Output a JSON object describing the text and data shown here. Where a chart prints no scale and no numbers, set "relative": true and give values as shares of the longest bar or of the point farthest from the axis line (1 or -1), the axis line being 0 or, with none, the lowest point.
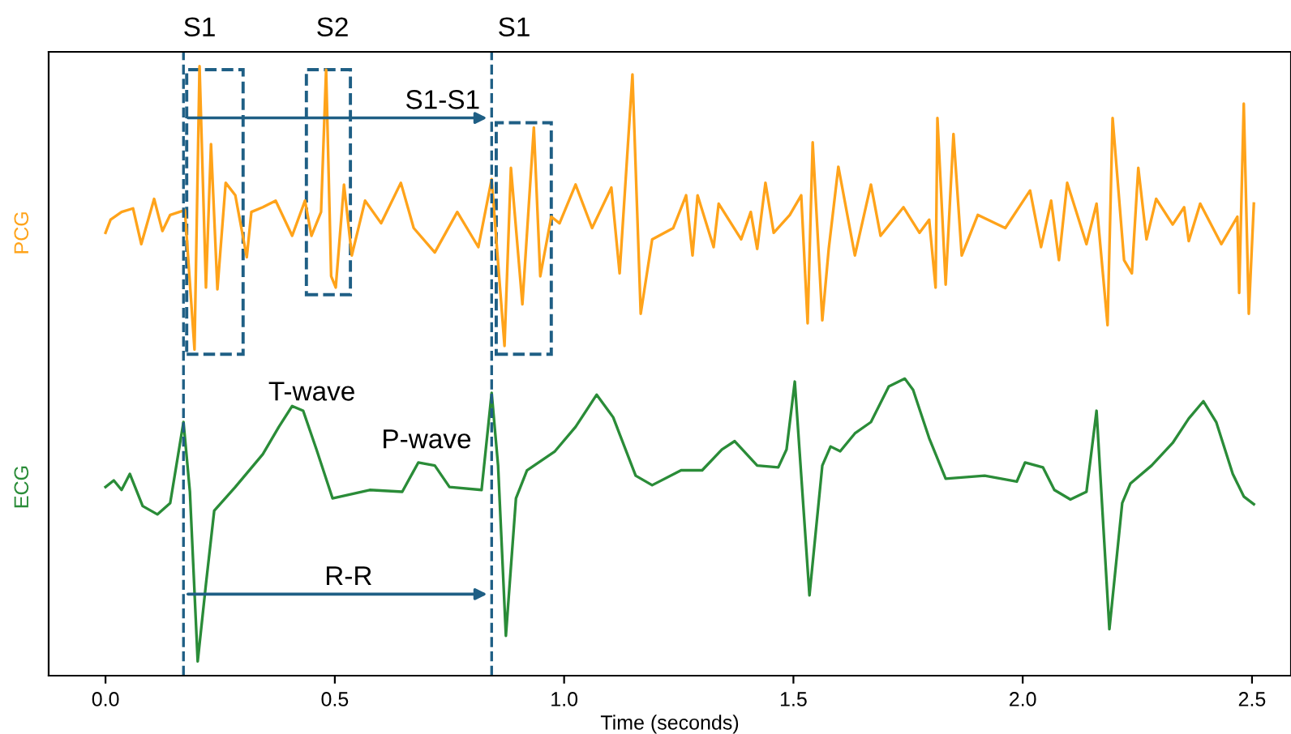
{
  "chart_data": {
    "type": "line",
    "relative": true,
    "xlabel": "Time (seconds)",
    "xlim": [
      -0.124,
      2.585
    ],
    "xticks": [
      {
        "value": 0,
        "label": "0.0"
      },
      0.5,
      {
        "value": 1,
        "label": "1.0"
      },
      1.5,
      {
        "value": 2,
        "label": "2.0"
      },
      2.5
    ],
    "grid": false,
    "legend": false,
    "series": [
      {
        "name": "PCG",
        "color": "#ffa31a",
        "x": [
          0,
          0.011,
          0.035,
          0.06,
          0.078,
          0.106,
          0.124,
          0.141,
          0.173,
          0.194,
          0.205,
          0.219,
          0.23,
          0.244,
          0.262,
          0.283,
          0.308,
          0.318,
          0.343,
          0.371,
          0.407,
          0.435,
          0.449,
          0.47,
          0.481,
          0.492,
          0.502,
          0.52,
          0.537,
          0.566,
          0.601,
          0.644,
          0.672,
          0.718,
          0.767,
          0.813,
          0.842,
          0.87,
          0.884,
          0.909,
          0.934,
          0.948,
          0.972,
          0.99,
          1.025,
          1.061,
          1.103,
          1.121,
          1.149,
          1.167,
          1.192,
          1.238,
          1.266,
          1.28,
          1.291,
          1.326,
          1.337,
          1.386,
          1.407,
          1.421,
          1.439,
          1.457,
          1.492,
          1.517,
          1.531,
          1.542,
          1.563,
          1.577,
          1.598,
          1.634,
          1.669,
          1.69,
          1.74,
          1.775,
          1.796,
          1.81,
          1.814,
          1.832,
          1.849,
          1.867,
          1.902,
          1.962,
          2.016,
          2.04,
          2.062,
          2.079,
          2.097,
          2.139,
          2.161,
          2.185,
          2.196,
          2.221,
          2.238,
          2.252,
          2.27,
          2.291,
          2.327,
          2.352,
          2.362,
          2.387,
          2.433,
          2.468,
          2.472,
          2.482,
          2.493,
          2.504
        ],
        "values": [
          0.72,
          0.742,
          0.755,
          0.761,
          0.701,
          0.777,
          0.723,
          0.75,
          0.758,
          0.524,
          1.0,
          0.628,
          0.869,
          0.625,
          0.804,
          0.783,
          0.679,
          0.755,
          0.763,
          0.774,
          0.715,
          0.774,
          0.715,
          0.755,
          0.994,
          0.647,
          0.628,
          0.801,
          0.682,
          0.774,
          0.736,
          0.804,
          0.728,
          0.687,
          0.755,
          0.696,
          0.81,
          0.53,
          0.829,
          0.6,
          0.897,
          0.647,
          0.747,
          0.736,
          0.801,
          0.728,
          0.796,
          0.652,
          0.986,
          0.584,
          0.709,
          0.728,
          0.783,
          0.682,
          0.783,
          0.696,
          0.769,
          0.709,
          0.755,
          0.693,
          0.804,
          0.72,
          0.75,
          0.783,
          0.568,
          0.872,
          0.573,
          0.693,
          0.831,
          0.682,
          0.801,
          0.715,
          0.763,
          0.72,
          0.742,
          0.628,
          0.913,
          0.633,
          0.886,
          0.682,
          0.75,
          0.728,
          0.791,
          0.696,
          0.774,
          0.674,
          0.804,
          0.701,
          0.769,
          0.565,
          0.913,
          0.674,
          0.652,
          0.829,
          0.709,
          0.777,
          0.734,
          0.763,
          0.706,
          0.769,
          0.701,
          0.747,
          0.619,
          0.937,
          0.584,
          0.769
        ]
      },
      {
        "name": "ECG",
        "color": "#2a8c38",
        "x": [
          0,
          0.018,
          0.035,
          0.053,
          0.081,
          0.113,
          0.141,
          0.17,
          0.184,
          0.201,
          0.219,
          0.237,
          0.283,
          0.343,
          0.378,
          0.407,
          0.431,
          0.46,
          0.495,
          0.576,
          0.647,
          0.682,
          0.718,
          0.75,
          0.82,
          0.842,
          0.856,
          0.873,
          0.895,
          0.919,
          0.98,
          1.025,
          1.071,
          1.107,
          1.156,
          1.192,
          1.255,
          1.301,
          1.344,
          1.372,
          1.421,
          1.467,
          1.485,
          1.503,
          1.535,
          1.563,
          1.581,
          1.602,
          1.634,
          1.669,
          1.708,
          1.743,
          1.761,
          1.796,
          1.832,
          1.917,
          1.987,
          2.005,
          2.044,
          2.069,
          2.104,
          2.139,
          2.161,
          2.189,
          2.217,
          2.235,
          2.281,
          2.327,
          2.362,
          2.394,
          2.422,
          2.458,
          2.482,
          2.504
        ],
        "values": [
          0.293,
          0.304,
          0.288,
          0.315,
          0.261,
          0.247,
          0.266,
          0.402,
          0.285,
          0,
          0.13,
          0.253,
          0.293,
          0.348,
          0.394,
          0.429,
          0.421,
          0.356,
          0.274,
          0.288,
          0.285,
          0.334,
          0.329,
          0.293,
          0.288,
          0.451,
          0.329,
          0.043,
          0.274,
          0.321,
          0.353,
          0.394,
          0.448,
          0.41,
          0.312,
          0.296,
          0.321,
          0.321,
          0.356,
          0.37,
          0.329,
          0.326,
          0.356,
          0.47,
          0.111,
          0.329,
          0.361,
          0.353,
          0.383,
          0.402,
          0.462,
          0.475,
          0.456,
          0.375,
          0.307,
          0.312,
          0.302,
          0.334,
          0.326,
          0.288,
          0.272,
          0.285,
          0.421,
          0.054,
          0.266,
          0.299,
          0.329,
          0.367,
          0.408,
          0.437,
          0.402,
          0.315,
          0.277,
          0.264
        ]
      }
    ],
    "ref_lines": [
      {
        "axis": "x",
        "value": 0.17,
        "color": "#1f5f85",
        "line_style": "dashed"
      },
      {
        "axis": "x",
        "value": 0.842,
        "color": "#1f5f85",
        "line_style": "dashed"
      }
    ],
    "annotations": [
      "S1",
      "S2",
      "S1",
      "S1-S1",
      "T-wave",
      "P-wave",
      "R-R"
    ]
  }
}
